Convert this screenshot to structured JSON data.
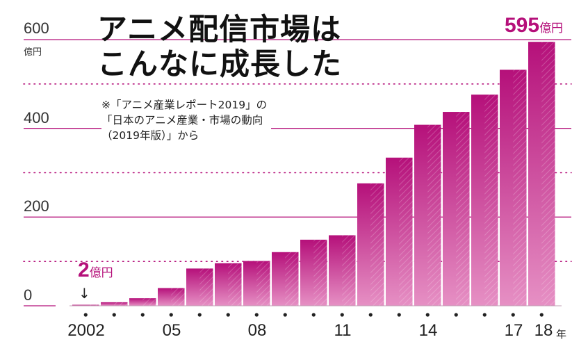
{
  "chart_data": {
    "type": "bar",
    "title_lines": [
      "アニメ配信市場は",
      "こんなに成長した"
    ],
    "note_lines": [
      "※「アニメ産業レポート2019」の",
      "「日本のアニメ産業・市場の動向",
      "（2019年版）」から"
    ],
    "y_unit": "億円",
    "yticks": [
      "0",
      "200",
      "400",
      "600"
    ],
    "ylim": [
      0,
      600
    ],
    "categories": [
      "2002",
      "2003",
      "2004",
      "2005",
      "2006",
      "2007",
      "2008",
      "2009",
      "2010",
      "2011",
      "2012",
      "2013",
      "2014",
      "2015",
      "2016",
      "2017",
      "2018"
    ],
    "values": [
      2,
      8,
      17,
      40,
      84,
      96,
      101,
      121,
      149,
      159,
      276,
      334,
      408,
      437,
      476,
      532,
      595
    ],
    "x_tick_labels": [
      {
        "index": 0,
        "text": "2002"
      },
      {
        "index": 3,
        "text": "05"
      },
      {
        "index": 6,
        "text": "08"
      },
      {
        "index": 9,
        "text": "11"
      },
      {
        "index": 12,
        "text": "14"
      },
      {
        "index": 15,
        "text": "17"
      },
      {
        "index": 16,
        "text": "18"
      }
    ],
    "x_unit": "年",
    "first_label": {
      "value": "2",
      "unit": "億円"
    },
    "last_label": {
      "value": "595",
      "unit": "億円"
    },
    "colors": {
      "bar": "#d94f9c",
      "bar_dark": "#b5107a",
      "grid": "#b5107a",
      "accent": "#b5107a"
    },
    "grid": true
  }
}
